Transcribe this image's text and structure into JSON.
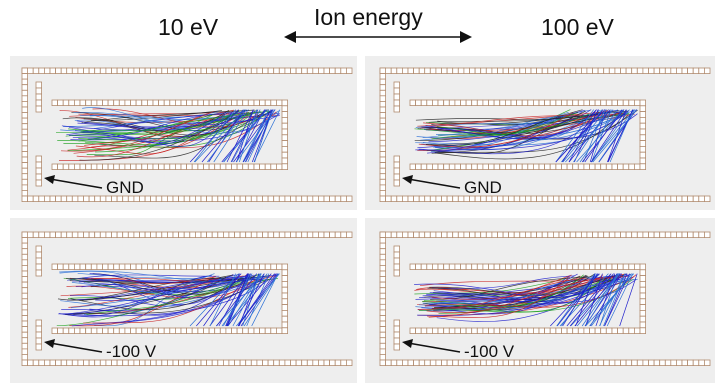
{
  "header": {
    "left_label": "10 eV",
    "center_label": "Ion energy",
    "right_label": "100 eV"
  },
  "panels": [
    {
      "id": "low-energy-gnd",
      "label": "GND",
      "spread": "wide"
    },
    {
      "id": "high-energy-gnd",
      "label": "GND",
      "spread": "narrow"
    },
    {
      "id": "low-energy-bias",
      "label": "-100 V",
      "spread": "wide"
    },
    {
      "id": "high-energy-bias",
      "label": "-100 V",
      "spread": "narrow"
    }
  ],
  "colors": {
    "background": "#eeeeee",
    "divider": "#ffffff",
    "electrode_fill": "#ffffff",
    "electrode_stroke": "#b08a6e",
    "trajectory_colors": [
      "#1f1fcc",
      "#1aa01a",
      "#c81e1e",
      "#222222",
      "#2a6fd6"
    ]
  }
}
